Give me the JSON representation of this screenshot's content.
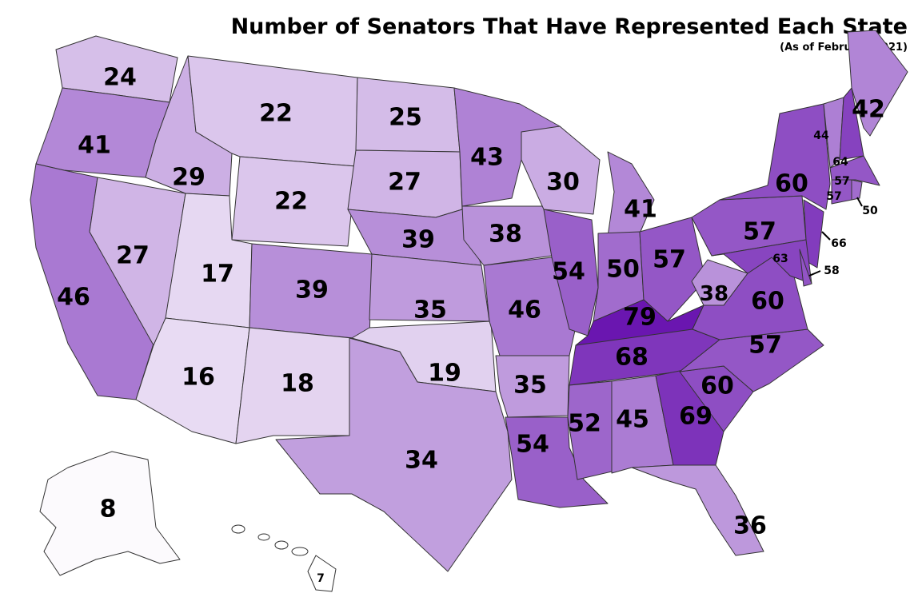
{
  "title": "Number of Senators That Have Represented Each State",
  "subtitle": "(As of February 2021)",
  "chart_data": {
    "type": "choropleth",
    "color_range": [
      "#ffffff",
      "#6a16b0"
    ],
    "value_range": [
      7,
      79
    ],
    "states": [
      {
        "code": "WA",
        "value": 24
      },
      {
        "code": "OR",
        "value": 41
      },
      {
        "code": "CA",
        "value": 46
      },
      {
        "code": "NV",
        "value": 27
      },
      {
        "code": "ID",
        "value": 29
      },
      {
        "code": "MT",
        "value": 22
      },
      {
        "code": "WY",
        "value": 22
      },
      {
        "code": "UT",
        "value": 17
      },
      {
        "code": "AZ",
        "value": 16
      },
      {
        "code": "CO",
        "value": 39
      },
      {
        "code": "NM",
        "value": 18
      },
      {
        "code": "ND",
        "value": 25
      },
      {
        "code": "SD",
        "value": 27
      },
      {
        "code": "NE",
        "value": 39
      },
      {
        "code": "KS",
        "value": 35
      },
      {
        "code": "OK",
        "value": 19
      },
      {
        "code": "TX",
        "value": 34
      },
      {
        "code": "MN",
        "value": 43
      },
      {
        "code": "IA",
        "value": 38
      },
      {
        "code": "MO",
        "value": 46
      },
      {
        "code": "AR",
        "value": 35
      },
      {
        "code": "LA",
        "value": 54
      },
      {
        "code": "WI",
        "value": 30
      },
      {
        "code": "IL",
        "value": 54
      },
      {
        "code": "MI",
        "value": 41
      },
      {
        "code": "IN",
        "value": 50
      },
      {
        "code": "OH",
        "value": 57
      },
      {
        "code": "KY",
        "value": 79
      },
      {
        "code": "TN",
        "value": 68
      },
      {
        "code": "MS",
        "value": 52
      },
      {
        "code": "AL",
        "value": 45
      },
      {
        "code": "GA",
        "value": 69
      },
      {
        "code": "FL",
        "value": 36
      },
      {
        "code": "SC",
        "value": 60
      },
      {
        "code": "NC",
        "value": 57
      },
      {
        "code": "VA",
        "value": 60
      },
      {
        "code": "WV",
        "value": 38
      },
      {
        "code": "PA",
        "value": 57
      },
      {
        "code": "NY",
        "value": 60
      },
      {
        "code": "NJ",
        "value": 66
      },
      {
        "code": "MD",
        "value": 63
      },
      {
        "code": "DE",
        "value": 58
      },
      {
        "code": "VT",
        "value": 44
      },
      {
        "code": "NH",
        "value": 64
      },
      {
        "code": "ME",
        "value": 42
      },
      {
        "code": "MA",
        "value": 57
      },
      {
        "code": "CT",
        "value": 57
      },
      {
        "code": "RI",
        "value": 50
      },
      {
        "code": "AK",
        "value": 8
      },
      {
        "code": "HI",
        "value": 7
      }
    ]
  }
}
